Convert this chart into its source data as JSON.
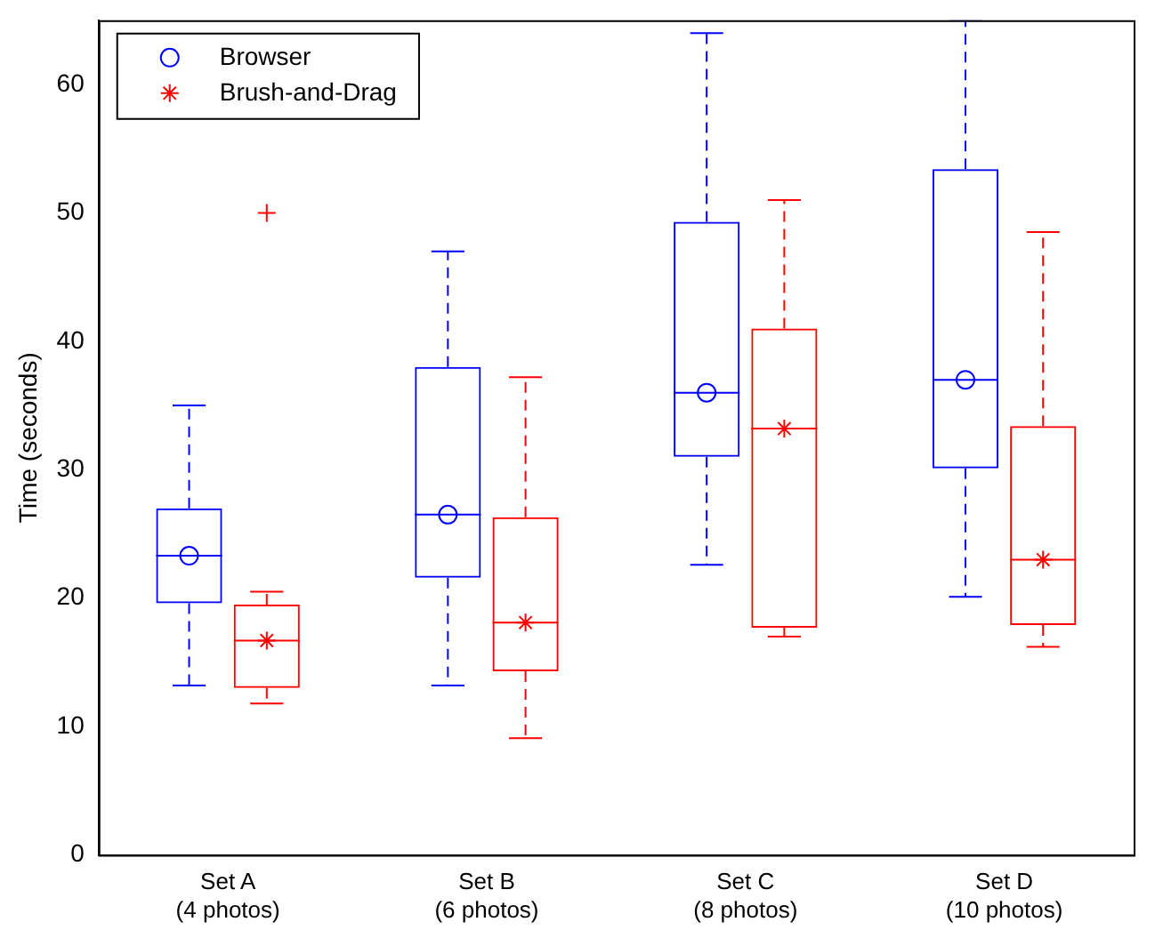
{
  "chart_data": {
    "type": "box",
    "ylabel": "Time (seconds)",
    "categories": [
      "Set A\n(4 photos)",
      "Set B\n(6 photos)",
      "Set C\n(8 photos)",
      "Set D\n(10 photos)"
    ],
    "ylim": [
      0,
      65
    ],
    "yticks": [
      0,
      10,
      20,
      30,
      40,
      50,
      60
    ],
    "grid": false,
    "legend": "top left",
    "line_style": "dashed",
    "series": [
      {
        "color": "#0000ff",
        "boxes": [
          {
            "low": 13.2,
            "q1": 19.6,
            "median": 23.3,
            "q3": 27,
            "high": 35
          },
          {
            "low": 13.2,
            "q1": 21.6,
            "median": 26.5,
            "q3": 38,
            "high": 47
          },
          {
            "low": 22.6,
            "q1": 31,
            "median": 36,
            "q3": 49.3,
            "high": 64
          },
          {
            "low": 20.1,
            "q1": 30.1,
            "median": 37,
            "q3": 53.4,
            "high": 65
          }
        ]
      },
      {
        "color": "#ff0000",
        "boxes": [
          {
            "low": 11.8,
            "q1": 13,
            "median": 16.7,
            "q3": 19.5,
            "high": 20.5,
            "outliers": [
              50
            ]
          },
          {
            "low": 9.1,
            "q1": 14.3,
            "median": 18.1,
            "q3": 26.3,
            "high": 37.2
          },
          {
            "low": 17,
            "q1": 17.7,
            "median": 33.2,
            "q3": 41,
            "high": 51
          },
          {
            "low": 16.2,
            "q1": 17.9,
            "median": 23,
            "q3": 33.4,
            "high": 48.5
          }
        ]
      },
      {
        "type": "scatter",
        "name": "Browser",
        "color": "#0000ff",
        "marker": "circle",
        "x": [
          "Set A\n(4 photos)",
          "Set B\n(6 photos)",
          "Set C\n(8 photos)",
          "Set D\n(10 photos)"
        ],
        "values": [
          23.3,
          26.5,
          36,
          37
        ]
      },
      {
        "type": "scatter",
        "name": "Brush-and-Drag",
        "color": "#ff0000",
        "marker": "cross",
        "x": [
          "Set A\n(4 photos)",
          "Set B\n(6 photos)",
          "Set C\n(8 photos)",
          "Set D\n(10 photos)"
        ],
        "values": [
          16.7,
          18.1,
          33.2,
          23
        ]
      }
    ]
  }
}
